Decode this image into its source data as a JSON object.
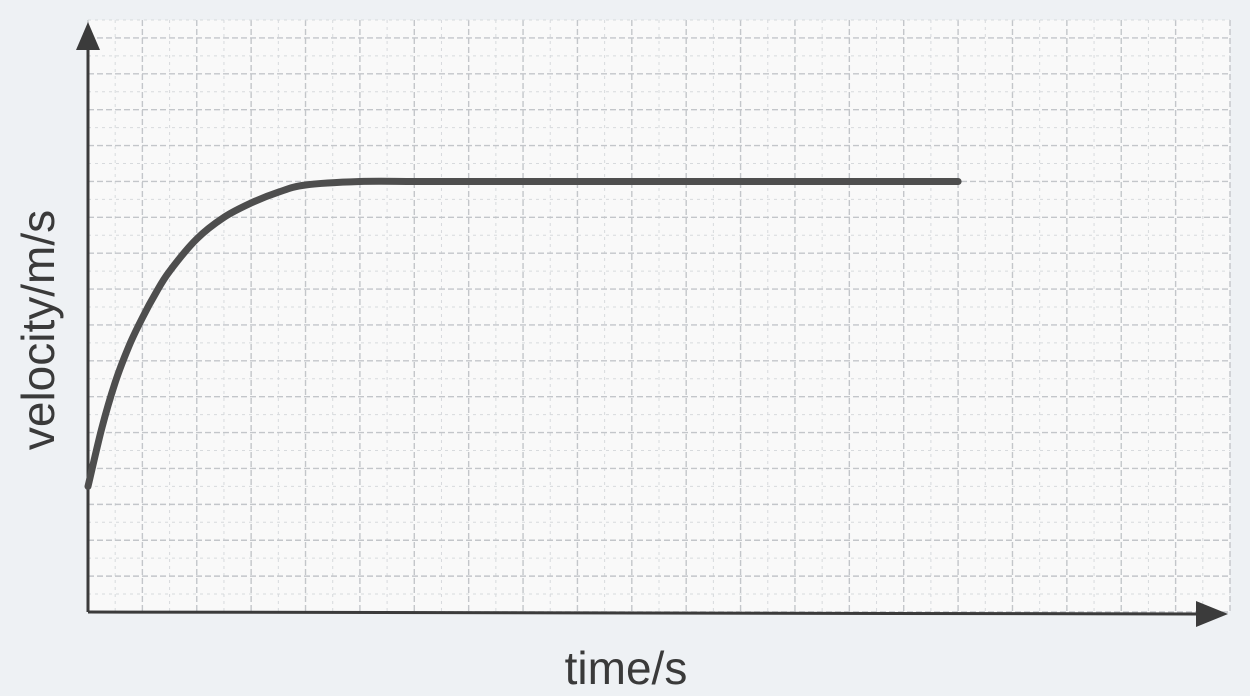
{
  "chart_data": {
    "type": "line",
    "title": "",
    "xlabel": "time/s",
    "ylabel": "velocity/m/s",
    "grid": true,
    "series": [
      {
        "x": [
          0,
          0.25,
          0.5,
          0.75,
          1,
          1.25,
          1.5,
          2,
          2.5,
          3,
          3.5,
          4,
          5,
          6,
          7,
          8,
          9,
          10,
          11,
          12,
          13,
          14,
          15,
          16
        ],
        "y": [
          3.5,
          5.1,
          6.4,
          7.4,
          8.2,
          8.9,
          9.5,
          10.4,
          11.0,
          11.4,
          11.7,
          11.9,
          12.0,
          12.0,
          12.0,
          12.0,
          12.0,
          12.0,
          12.0,
          12.0,
          12.0,
          12.0,
          12.0,
          12.0
        ]
      }
    ],
    "colors": {
      "background": "#eef1f4",
      "grid_major": "#c3c6ca",
      "grid_minor": "#d7dadd",
      "axis": "#3b3b3b",
      "line": "#4e4e4e"
    }
  }
}
